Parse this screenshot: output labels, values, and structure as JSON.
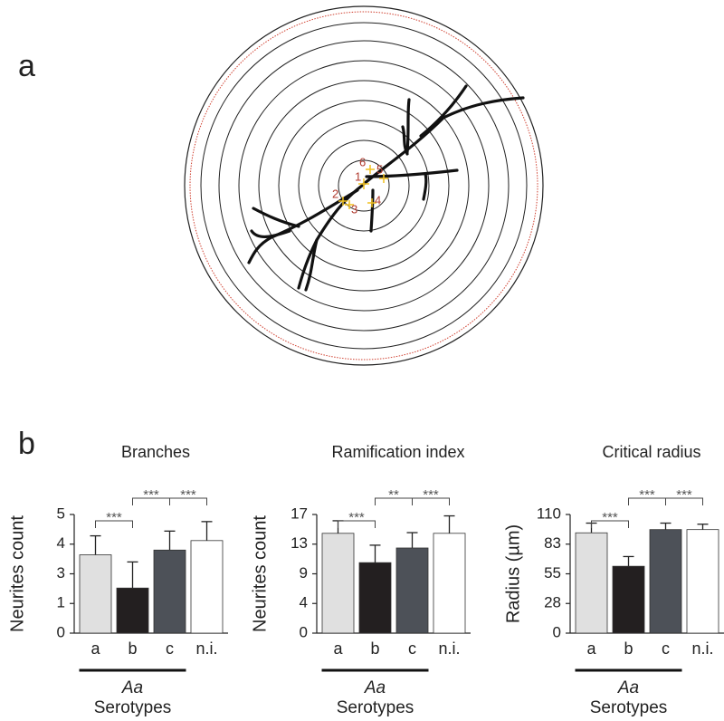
{
  "panel_labels": [
    "a",
    "b"
  ],
  "diagram": {
    "point_labels": [
      "1",
      "2",
      "3",
      "4",
      "5",
      "6"
    ]
  },
  "chart_data": [
    {
      "type": "bar",
      "title": "Branches",
      "ylabel": "Neurites count",
      "categories": [
        "a",
        "b",
        "c",
        "n.i."
      ],
      "values": [
        3.3,
        1.9,
        3.5,
        3.9
      ],
      "errors": [
        0.8,
        1.1,
        0.8,
        0.8
      ],
      "colors": [
        "#e0e0e0",
        "#231f20",
        "#4d5158",
        "#ffffff"
      ],
      "ylim": [
        0,
        5
      ],
      "yticks": [
        0,
        {
          "value": 1.25,
          "label": "1"
        },
        {
          "value": 2.5,
          "label": "3"
        },
        {
          "value": 3.75,
          "label": "4"
        },
        5
      ],
      "group_label": "Aa",
      "xlabel": "Serotypes",
      "annotations": [
        "***",
        "***",
        "***"
      ]
    },
    {
      "type": "bar",
      "title": "Ramification index",
      "ylabel": "Neurites count",
      "categories": [
        "a",
        "b",
        "c",
        "n.i."
      ],
      "values": [
        14.3,
        10.1,
        12.2,
        14.3
      ],
      "errors": [
        1.8,
        2.5,
        2.2,
        2.5
      ],
      "colors": [
        "#e0e0e0",
        "#231f20",
        "#4d5158",
        "#ffffff"
      ],
      "ylim": [
        0,
        17
      ],
      "yticks": [
        0,
        {
          "value": 4.25,
          "label": "4"
        },
        {
          "value": 8.5,
          "label": "9"
        },
        {
          "value": 12.75,
          "label": "13"
        },
        17
      ],
      "group_label": "Aa",
      "xlabel": "Serotypes",
      "annotations": [
        "***",
        "**",
        "***"
      ]
    },
    {
      "type": "bar",
      "title": "Critical radius",
      "ylabel": "Radius (µm)",
      "categories": [
        "a",
        "b",
        "c",
        "n.i."
      ],
      "values": [
        93,
        62,
        96,
        96
      ],
      "errors": [
        9,
        9,
        6,
        5
      ],
      "colors": [
        "#e0e0e0",
        "#231f20",
        "#4d5158",
        "#ffffff"
      ],
      "ylim": [
        0,
        110
      ],
      "yticks": [
        0,
        {
          "value": 27.5,
          "label": "28"
        },
        {
          "value": 55,
          "label": "55"
        },
        {
          "value": 82.5,
          "label": "83"
        },
        110
      ],
      "group_label": "Aa",
      "xlabel": "Serotypes",
      "annotations": [
        "***",
        "***",
        "***"
      ]
    }
  ]
}
